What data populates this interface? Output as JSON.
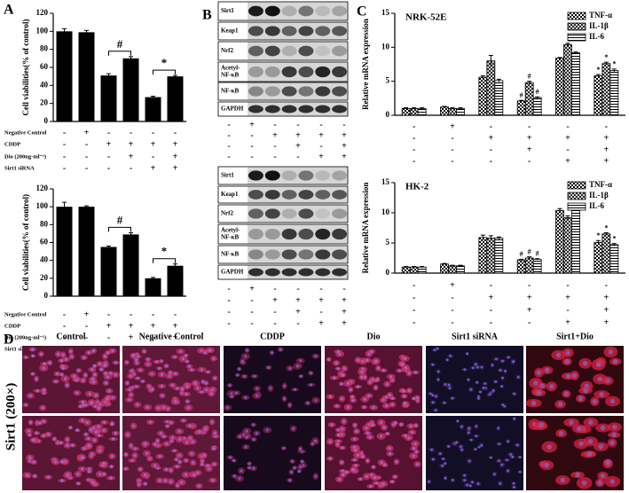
{
  "panel_labels": [
    "A",
    "B",
    "C",
    "D"
  ],
  "chart_data": [
    {
      "type": "bar",
      "ylabel": "Cell viabilities(% of control)",
      "categories": [
        null,
        null,
        null,
        null,
        null,
        null
      ],
      "values": [
        100,
        99,
        51,
        70,
        27,
        50
      ],
      "errors": [
        3,
        2,
        2,
        2,
        1,
        1
      ],
      "color": "#000000",
      "ylim": [
        0,
        120
      ],
      "yticks": [
        0,
        20,
        40,
        60,
        80,
        100,
        120
      ],
      "annotations": [
        null,
        null,
        null,
        "#",
        null,
        "*"
      ],
      "conditions": [
        {
          "name": "Negative Control",
          "signs": [
            "-",
            "+",
            "-",
            "-",
            "-",
            "-"
          ]
        },
        {
          "name": "CDDP",
          "signs": [
            "-",
            "-",
            "+",
            "+",
            "+",
            "+"
          ]
        },
        {
          "name": "Dio (200ng·ml⁻¹)",
          "signs": [
            "-",
            "-",
            "-",
            "+",
            "-",
            "+"
          ]
        },
        {
          "name": "Sirt1 siRNA",
          "signs": [
            "-",
            "-",
            "-",
            "-",
            "+",
            "+"
          ]
        }
      ]
    },
    {
      "type": "bar",
      "ylabel": "Cell viabilities(% of control)",
      "categories": [
        null,
        null,
        null,
        null,
        null,
        null
      ],
      "values": [
        100,
        100,
        55,
        69,
        20,
        34
      ],
      "errors": [
        5,
        1,
        1,
        2,
        1,
        2
      ],
      "color": "#000000",
      "ylim": [
        0,
        120
      ],
      "yticks": [
        0,
        20,
        40,
        60,
        80,
        100,
        120
      ],
      "annotations": [
        null,
        null,
        null,
        "#",
        null,
        "*"
      ],
      "conditions": [
        {
          "name": "Negative Control",
          "signs": [
            "-",
            "+",
            "-",
            "-",
            "-",
            "-"
          ]
        },
        {
          "name": "CDDP",
          "signs": [
            "-",
            "-",
            "+",
            "+",
            "+",
            "+"
          ]
        },
        {
          "name": "Dio (200ng·ml⁻¹)",
          "signs": [
            "-",
            "-",
            "-",
            "+",
            "-",
            "+"
          ]
        },
        {
          "name": "Sirt1 siRNA",
          "signs": [
            "-",
            "-",
            "-",
            "-",
            "+",
            "+"
          ]
        }
      ]
    },
    {
      "type": "grouped_bar",
      "title": "NRK-52E",
      "ylabel": "Relative mRNA expression",
      "categories": [
        null,
        null,
        null,
        null,
        null,
        null
      ],
      "ylim": [
        0,
        15
      ],
      "yticks": [
        0,
        5,
        10,
        15
      ],
      "legend": "upper right",
      "series": [
        {
          "name": "TNF-α",
          "color": "#000000",
          "pattern": "checker",
          "values": [
            1,
            1.2,
            5.6,
            2.1,
            8.4,
            5.8
          ],
          "errors": [
            0.1,
            0.1,
            0.2,
            0.1,
            0.1,
            0.2
          ],
          "annotations": [
            null,
            null,
            null,
            "#",
            null,
            "*"
          ]
        },
        {
          "name": "IL-1β",
          "color": "#000000",
          "pattern": "crosshatch",
          "values": [
            1,
            1,
            8,
            4.8,
            10.4,
            7.6
          ],
          "errors": [
            0.1,
            0.1,
            0.8,
            0.2,
            0.2,
            0.2
          ],
          "annotations": [
            null,
            null,
            null,
            "#",
            null,
            "*"
          ]
        },
        {
          "name": "IL-6",
          "color": "#000000",
          "pattern": "hlines",
          "values": [
            1,
            1,
            5.1,
            2.6,
            9.2,
            6.6
          ],
          "errors": [
            0.1,
            0.1,
            0.2,
            0.1,
            0.1,
            0.2
          ],
          "annotations": [
            null,
            null,
            null,
            "#",
            null,
            "*"
          ]
        }
      ],
      "conditions": [
        {
          "signs": [
            "-",
            "+",
            "-",
            "-",
            "-",
            "-"
          ]
        },
        {
          "signs": [
            "-",
            "-",
            "+",
            "+",
            "+",
            "+"
          ]
        },
        {
          "signs": [
            "-",
            "-",
            "-",
            "+",
            "-",
            "+"
          ]
        },
        {
          "signs": [
            "-",
            "-",
            "-",
            "-",
            "+",
            "+"
          ]
        }
      ]
    },
    {
      "type": "grouped_bar",
      "title": "HK-2",
      "ylabel": "Relative mRNA expression",
      "categories": [
        null,
        null,
        null,
        null,
        null,
        null
      ],
      "ylim": [
        0,
        15
      ],
      "yticks": [
        0,
        5,
        10,
        15
      ],
      "legend": "upper right",
      "series": [
        {
          "name": "TNF-α",
          "color": "#000000",
          "pattern": "checker",
          "values": [
            1,
            1.5,
            5.9,
            2.2,
            10.4,
            5.1
          ],
          "errors": [
            0.1,
            0.1,
            0.4,
            0.1,
            0.3,
            0.3
          ],
          "annotations": [
            null,
            null,
            null,
            "#",
            null,
            "*"
          ]
        },
        {
          "name": "IL-1β",
          "color": "#000000",
          "pattern": "crosshatch",
          "values": [
            1,
            1.2,
            5.8,
            2.5,
            9.2,
            6.5
          ],
          "errors": [
            0.1,
            0.1,
            0.4,
            0.2,
            0.3,
            0.2
          ],
          "annotations": [
            null,
            null,
            null,
            "#",
            null,
            "*"
          ]
        },
        {
          "name": "IL-6",
          "color": "#000000",
          "pattern": "hlines",
          "values": [
            1,
            1.2,
            5.8,
            2.3,
            11,
            4.7
          ],
          "errors": [
            0.1,
            0.1,
            0.2,
            0.1,
            0.5,
            0.2
          ],
          "annotations": [
            null,
            null,
            null,
            "#",
            null,
            "*"
          ]
        }
      ],
      "conditions": [
        {
          "signs": [
            "-",
            "+",
            "-",
            "-",
            "-",
            "-"
          ]
        },
        {
          "signs": [
            "-",
            "-",
            "+",
            "+",
            "+",
            "+"
          ]
        },
        {
          "signs": [
            "-",
            "-",
            "-",
            "+",
            "-",
            "+"
          ]
        },
        {
          "signs": [
            "-",
            "-",
            "-",
            "-",
            "+",
            "+"
          ]
        }
      ]
    }
  ],
  "blots": [
    {
      "bands": [
        [
          "Sirt1"
        ],
        [
          "Keap1"
        ],
        [
          "Nrf2"
        ],
        [
          "Acetyl-",
          "NF-κB"
        ],
        [
          "NF-κB"
        ],
        [
          "GAPDH"
        ]
      ],
      "signs": [
        [
          "-",
          "+",
          "-",
          "-",
          "-",
          "-"
        ],
        [
          "-",
          "-",
          "+",
          "+",
          "+",
          "+"
        ],
        [
          "-",
          "-",
          "-",
          "+",
          "-",
          "+"
        ],
        [
          "-",
          "-",
          "-",
          "-",
          "+",
          "+"
        ]
      ]
    },
    {
      "bands": [
        [
          "Sirt1"
        ],
        [
          "Keap1"
        ],
        [
          "Nrf2"
        ],
        [
          "Acetyl-",
          "NF-κB"
        ],
        [
          "NF-κB"
        ],
        [
          "GAPDH"
        ]
      ],
      "signs": [
        [
          "-",
          "+",
          "-",
          "-",
          "-",
          "-"
        ],
        [
          "-",
          "-",
          "+",
          "+",
          "+",
          "+"
        ],
        [
          "-",
          "-",
          "-",
          "+",
          "-",
          "+"
        ],
        [
          "-",
          "-",
          "-",
          "-",
          "+",
          "+"
        ]
      ]
    }
  ],
  "micrographs": {
    "columns": [
      "Control",
      "Negative Control",
      "CDDP",
      "Dio",
      "Sirt1  siRNA",
      "Sirt1+Dio"
    ],
    "row_label": "Sirt1 (200×)"
  }
}
